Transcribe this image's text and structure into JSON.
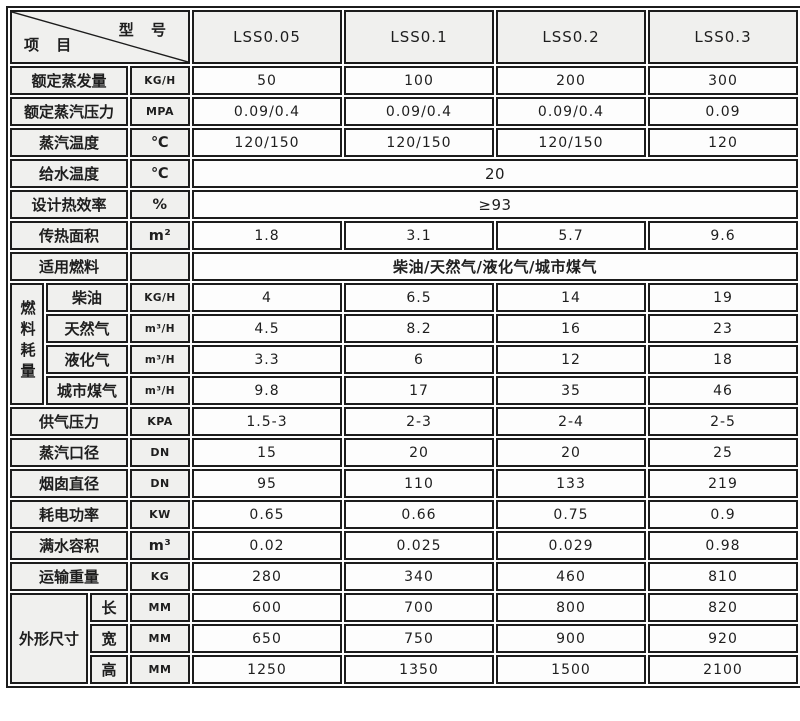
{
  "header": {
    "corner_top": "型 号",
    "corner_bottom": "项 目",
    "models": [
      "LSS0.05",
      "LSS0.1",
      "LSS0.2",
      "LSS0.3"
    ]
  },
  "rows": [
    {
      "label": "额定蒸发量",
      "unit": "KG/H",
      "values": [
        "50",
        "100",
        "200",
        "300"
      ]
    },
    {
      "label": "额定蒸汽压力",
      "unit": "MPA",
      "values": [
        "0.09/0.4",
        "0.09/0.4",
        "0.09/0.4",
        "0.09"
      ]
    },
    {
      "label": "蒸汽温度",
      "unit": "℃",
      "values": [
        "120/150",
        "120/150",
        "120/150",
        "120"
      ]
    },
    {
      "label": "给水温度",
      "unit": "℃",
      "merged": "20"
    },
    {
      "label": "设计热效率",
      "unit": "%",
      "merged": "≥93"
    },
    {
      "label": "传热面积",
      "unit": "m²",
      "values": [
        "1.8",
        "3.1",
        "5.7",
        "9.6"
      ]
    },
    {
      "label": "适用燃料",
      "unit": "",
      "merged": "柴油/天然气/液化气/城市煤气",
      "merged_bold": true
    },
    {
      "group": "燃料耗量",
      "group_span": 4,
      "group_cols": 1,
      "group_vertical": true,
      "label": "柴油",
      "label_cols": 2,
      "unit": "KG/H",
      "values": [
        "4",
        "6.5",
        "14",
        "19"
      ]
    },
    {
      "label": "天然气",
      "label_cols": 2,
      "unit": "m³/H",
      "values": [
        "4.5",
        "8.2",
        "16",
        "23"
      ]
    },
    {
      "label": "液化气",
      "label_cols": 2,
      "unit": "m³/H",
      "values": [
        "3.3",
        "6",
        "12",
        "18"
      ]
    },
    {
      "label": "城市煤气",
      "label_cols": 2,
      "unit": "m³/H",
      "values": [
        "9.8",
        "17",
        "35",
        "46"
      ]
    },
    {
      "label": "供气压力",
      "unit": "KPA",
      "values": [
        "1.5-3",
        "2-3",
        "2-4",
        "2-5"
      ]
    },
    {
      "label": "蒸汽口径",
      "unit": "DN",
      "values": [
        "15",
        "20",
        "20",
        "25"
      ]
    },
    {
      "label": "烟囱直径",
      "unit": "DN",
      "values": [
        "95",
        "110",
        "133",
        "219"
      ]
    },
    {
      "label": "耗电功率",
      "unit": "KW",
      "values": [
        "0.65",
        "0.66",
        "0.75",
        "0.9"
      ]
    },
    {
      "label": "满水容积",
      "unit": "m³",
      "values": [
        "0.02",
        "0.025",
        "0.029",
        "0.98"
      ]
    },
    {
      "label": "运输重量",
      "unit": "KG",
      "values": [
        "280",
        "340",
        "460",
        "810"
      ]
    },
    {
      "group": "外形尺寸",
      "group_span": 3,
      "group_cols": 2,
      "group_vertical": false,
      "label": "长",
      "label_cols": 1,
      "unit": "MM",
      "values": [
        "600",
        "700",
        "800",
        "820"
      ]
    },
    {
      "label": "宽",
      "label_cols": 1,
      "unit": "MM",
      "values": [
        "650",
        "750",
        "900",
        "920"
      ]
    },
    {
      "label": "高",
      "label_cols": 1,
      "unit": "MM",
      "values": [
        "1250",
        "1350",
        "1500",
        "2100"
      ]
    }
  ],
  "colors": {
    "border": "#1c1c1c",
    "header_bg": "#f0f0ee",
    "data_bg": "#fdfdfd",
    "text": "#1e1e1e"
  }
}
